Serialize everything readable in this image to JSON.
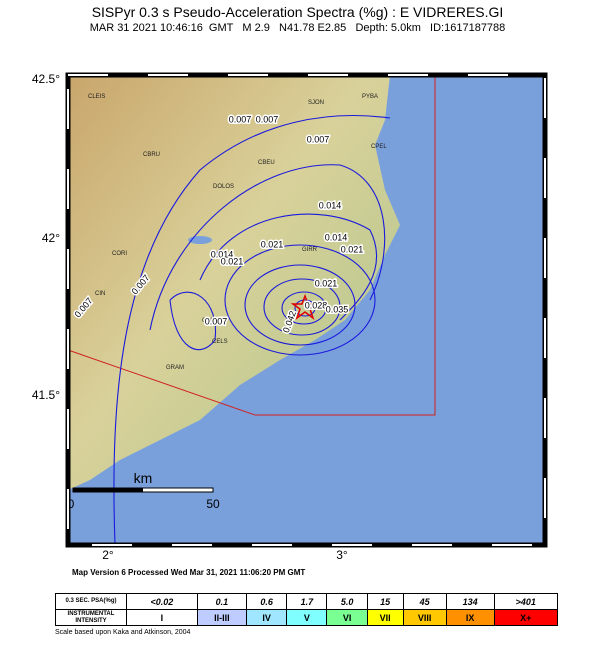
{
  "header": {
    "title": "SISPyr 0.3 s Pseudo-Acceleration Spectra (%g) : E VIDRERES.GI",
    "subtitle": "MAR 31 2021 10:46:16  GMT   M 2.9   N41.78 E2.85   Depth: 5.0km   ID:1617187788"
  },
  "map": {
    "lat_labels": [
      "42.5°",
      "42°",
      "41.5°"
    ],
    "lon_labels": [
      "2°",
      "3°"
    ],
    "places": [
      "CBRU",
      "CBEU",
      "DOLOS",
      "CORI",
      "CFON",
      "CELS",
      "GRAM",
      "CPEL",
      "PYBA",
      "SJON",
      "CLEIS",
      "CIN",
      "GIRR"
    ],
    "contour_labels": [
      "0.007",
      "0.007",
      "0.007",
      "0.007",
      "0.007",
      "0.007",
      "0.014",
      "0.014",
      "0.014",
      "0.021",
      "0.021",
      "0.021",
      "0.021",
      "0.028",
      "0.035",
      "0.042"
    ],
    "scale": {
      "unit": "km",
      "start": "0",
      "end": "50"
    }
  },
  "footer": {
    "processed": "Map Version 6 Processed Wed Mar 31, 2021 11:06:20 PM GMT",
    "note": "Scale based upon Kaka and Atkinson, 2004"
  },
  "legend": {
    "psa_header": "0.3 SEC. PSA(%g)",
    "intensity_header": "INSTRUMENTAL INTENSITY",
    "psa": [
      "<0.02",
      "0.1",
      "0.6",
      "1.7",
      "5.0",
      "15",
      "45",
      "134",
      ">401"
    ],
    "intensity": [
      "I",
      "II-III",
      "IV",
      "V",
      "VI",
      "VII",
      "VIII",
      "IX",
      "X+"
    ]
  }
}
